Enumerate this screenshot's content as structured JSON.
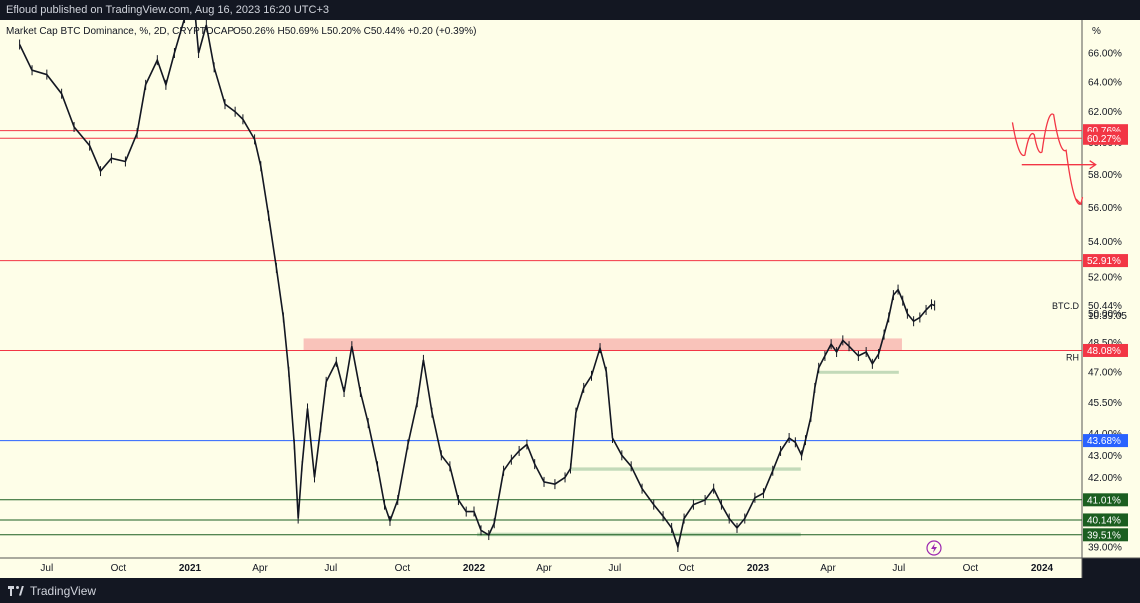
{
  "header": {
    "published_line": "Efloud published on TradingView.com, Aug 16, 2023 16:20 UTC+3"
  },
  "legend": {
    "symbol_text": "Market Cap BTC Dominance, %, 2D, CRYPTOCAP",
    "ohlc_text": "O50.26% H50.69% L50.20% C50.44% +0.20 (+0.39%)"
  },
  "footer": {
    "brand": "TradingView"
  },
  "chart_data": {
    "type": "line",
    "series": [
      {
        "name": "BTC.D"
      }
    ],
    "y_unit": "%",
    "y_axis_labels": [
      "66.00%",
      "64.00%",
      "62.00%",
      "60.00%",
      "58.00%",
      "56.00%",
      "54.00%",
      "52.00%",
      "50.00%",
      "48.50%",
      "47.00%",
      "45.50%",
      "44.00%",
      "43.00%",
      "42.00%",
      "41.00%",
      "40.00%",
      "39.00%"
    ],
    "x_axis_labels": [
      "Jul",
      "Oct",
      "2021",
      "Apr",
      "Jul",
      "Oct",
      "2022",
      "Apr",
      "Jul",
      "Oct",
      "2023",
      "Apr",
      "Jul",
      "Oct",
      "2024"
    ],
    "y_scale": "log",
    "y_range": [
      38.6,
      69.0
    ],
    "grid": false,
    "background": "#fefee8",
    "last_price": {
      "label": "BTC.D",
      "value": "50.44%",
      "countdown": "10:39:05"
    },
    "horizontal_levels": [
      {
        "value": 60.76,
        "label": "60.76%",
        "color": "#f23645"
      },
      {
        "value": 60.27,
        "label": "60.27%",
        "color": "#f23645"
      },
      {
        "value": 52.91,
        "label": "52.91%",
        "color": "#f23645"
      },
      {
        "value": 48.08,
        "label": "48.08%",
        "color": "#f23645",
        "tag": "RH"
      },
      {
        "value": 43.68,
        "label": "43.68%",
        "color": "#2962ff"
      },
      {
        "value": 41.01,
        "label": "41.01%",
        "color": "#1b5e20"
      },
      {
        "value": 40.14,
        "label": "40.14%",
        "color": "#1b5e20"
      },
      {
        "value": 39.51,
        "label": "39.51%",
        "color": "#1b5e20"
      }
    ],
    "zones": [
      {
        "from": 48.08,
        "to": 48.7,
        "color": "#f8b9b2",
        "start": "2021-05-27",
        "end": "2023-07-05"
      },
      {
        "from": 46.9,
        "to": 47.05,
        "color": "#b9d3b0",
        "start": "2023-03-18",
        "end": "2023-07-01"
      },
      {
        "from": 42.3,
        "to": 42.45,
        "color": "#b9d3b0",
        "start": "2022-05-05",
        "end": "2023-02-25"
      },
      {
        "from": 39.45,
        "to": 39.6,
        "color": "#b9d3b0",
        "start": "2022-01-05",
        "end": "2023-02-25"
      }
    ],
    "points": [
      [
        "2020-05-27",
        66.6
      ],
      [
        "2020-06-12",
        64.8
      ],
      [
        "2020-07-01",
        64.5
      ],
      [
        "2020-07-20",
        63.2
      ],
      [
        "2020-08-05",
        61.0
      ],
      [
        "2020-08-25",
        59.8
      ],
      [
        "2020-09-08",
        58.2
      ],
      [
        "2020-09-22",
        59.0
      ],
      [
        "2020-10-10",
        58.8
      ],
      [
        "2020-10-25",
        60.6
      ],
      [
        "2020-11-05",
        63.8
      ],
      [
        "2020-11-20",
        65.5
      ],
      [
        "2020-12-01",
        63.8
      ],
      [
        "2020-12-12",
        66.0
      ],
      [
        "2020-12-25",
        68.5
      ],
      [
        "2021-01-05",
        70.5
      ],
      [
        "2021-01-12",
        66.0
      ],
      [
        "2021-01-22",
        68.0
      ],
      [
        "2021-02-01",
        65.0
      ],
      [
        "2021-02-15",
        62.5
      ],
      [
        "2021-02-28",
        62.0
      ],
      [
        "2021-03-10",
        61.5
      ],
      [
        "2021-03-25",
        60.2
      ],
      [
        "2021-04-02",
        58.5
      ],
      [
        "2021-04-12",
        55.5
      ],
      [
        "2021-04-22",
        52.5
      ],
      [
        "2021-05-01",
        49.8
      ],
      [
        "2021-05-08",
        47.0
      ],
      [
        "2021-05-15",
        43.5
      ],
      [
        "2021-05-20",
        40.2
      ],
      [
        "2021-05-25",
        42.5
      ],
      [
        "2021-06-01",
        45.2
      ],
      [
        "2021-06-10",
        42.0
      ],
      [
        "2021-06-18",
        44.3
      ],
      [
        "2021-06-25",
        46.5
      ],
      [
        "2021-07-08",
        47.5
      ],
      [
        "2021-07-18",
        46.0
      ],
      [
        "2021-07-28",
        48.3
      ],
      [
        "2021-08-08",
        46.0
      ],
      [
        "2021-08-18",
        44.5
      ],
      [
        "2021-08-30",
        42.5
      ],
      [
        "2021-09-08",
        40.8
      ],
      [
        "2021-09-15",
        40.1
      ],
      [
        "2021-09-25",
        41.0
      ],
      [
        "2021-10-08",
        43.5
      ],
      [
        "2021-10-20",
        45.5
      ],
      [
        "2021-10-28",
        47.6
      ],
      [
        "2021-11-08",
        45.0
      ],
      [
        "2021-11-20",
        43.0
      ],
      [
        "2021-12-01",
        42.5
      ],
      [
        "2021-12-12",
        41.0
      ],
      [
        "2021-12-22",
        40.5
      ],
      [
        "2022-01-01",
        40.5
      ],
      [
        "2022-01-10",
        39.7
      ],
      [
        "2022-01-20",
        39.5
      ],
      [
        "2022-01-27",
        40.0
      ],
      [
        "2022-02-08",
        42.3
      ],
      [
        "2022-02-18",
        42.8
      ],
      [
        "2022-02-28",
        43.2
      ],
      [
        "2022-03-10",
        43.5
      ],
      [
        "2022-03-20",
        42.6
      ],
      [
        "2022-04-01",
        41.8
      ],
      [
        "2022-04-15",
        41.7
      ],
      [
        "2022-04-28",
        42.0
      ],
      [
        "2022-05-05",
        42.4
      ],
      [
        "2022-05-12",
        45.0
      ],
      [
        "2022-05-22",
        46.2
      ],
      [
        "2022-06-01",
        46.8
      ],
      [
        "2022-06-12",
        48.2
      ],
      [
        "2022-06-20",
        47.0
      ],
      [
        "2022-06-28",
        43.8
      ],
      [
        "2022-07-10",
        43.0
      ],
      [
        "2022-07-22",
        42.5
      ],
      [
        "2022-08-05",
        41.5
      ],
      [
        "2022-08-20",
        40.8
      ],
      [
        "2022-09-01",
        40.3
      ],
      [
        "2022-09-12",
        39.8
      ],
      [
        "2022-09-20",
        39.0
      ],
      [
        "2022-09-28",
        40.2
      ],
      [
        "2022-10-10",
        40.8
      ],
      [
        "2022-10-25",
        41.0
      ],
      [
        "2022-11-05",
        41.5
      ],
      [
        "2022-11-15",
        40.8
      ],
      [
        "2022-11-25",
        40.2
      ],
      [
        "2022-12-05",
        39.8
      ],
      [
        "2022-12-15",
        40.2
      ],
      [
        "2022-12-28",
        41.1
      ],
      [
        "2023-01-08",
        41.3
      ],
      [
        "2023-01-20",
        42.3
      ],
      [
        "2023-01-30",
        43.2
      ],
      [
        "2023-02-10",
        43.8
      ],
      [
        "2023-02-18",
        43.6
      ],
      [
        "2023-02-26",
        43.0
      ],
      [
        "2023-03-03",
        43.7
      ],
      [
        "2023-03-10",
        44.8
      ],
      [
        "2023-03-15",
        46.2
      ],
      [
        "2023-03-20",
        47.2
      ],
      [
        "2023-03-28",
        47.8
      ],
      [
        "2023-04-05",
        48.4
      ],
      [
        "2023-04-12",
        48.0
      ],
      [
        "2023-04-20",
        48.6
      ],
      [
        "2023-04-28",
        48.3
      ],
      [
        "2023-05-10",
        47.8
      ],
      [
        "2023-05-20",
        48.0
      ],
      [
        "2023-05-28",
        47.4
      ],
      [
        "2023-06-05",
        47.9
      ],
      [
        "2023-06-12",
        48.9
      ],
      [
        "2023-06-18",
        49.8
      ],
      [
        "2023-06-24",
        51.0
      ],
      [
        "2023-06-30",
        51.3
      ],
      [
        "2023-07-06",
        50.7
      ],
      [
        "2023-07-12",
        50.0
      ],
      [
        "2023-07-20",
        49.6
      ],
      [
        "2023-07-28",
        49.8
      ],
      [
        "2023-08-05",
        50.2
      ],
      [
        "2023-08-12",
        50.5
      ],
      [
        "2023-08-16",
        50.44
      ]
    ],
    "projection": [
      [
        "2023-11-24",
        61.3
      ],
      [
        "2023-12-10",
        59.2
      ],
      [
        "2023-12-22",
        60.5
      ],
      [
        "2024-01-01",
        59.4
      ],
      [
        "2024-01-16",
        61.8
      ],
      [
        "2024-02-01",
        59.5
      ],
      [
        "2024-02-20",
        56.2
      ]
    ],
    "projection_arrow": {
      "from": [
        "2023-12-06",
        58.6
      ],
      "to": [
        "2024-03-10",
        58.6
      ]
    }
  }
}
